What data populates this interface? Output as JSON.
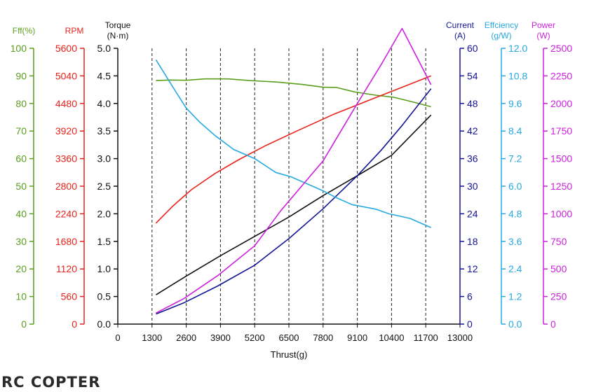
{
  "chart_data": {
    "type": "line",
    "xlabel": "Thrust(g)",
    "x_ticks": [
      0,
      1300,
      2600,
      3900,
      5200,
      6500,
      7800,
      9100,
      10400,
      11700,
      13000
    ],
    "x_range": [
      0,
      13000
    ],
    "grid": "vertical",
    "axes": [
      {
        "id": "eff",
        "title": "Fff(%)",
        "unit": "",
        "color": "#5a9e1e",
        "side": "left",
        "min": 0,
        "max": 100,
        "ticks": [
          0,
          10,
          20,
          30,
          40,
          50,
          60,
          70,
          80,
          90,
          100
        ],
        "tick_labels": [
          "0",
          "10",
          "20",
          "30",
          "40",
          "50",
          "60",
          "70",
          "80",
          "90",
          "100"
        ]
      },
      {
        "id": "rpm",
        "title": "RPM",
        "unit": "",
        "color": "#e8231c",
        "side": "left",
        "min": 0,
        "max": 5600,
        "ticks": [
          0,
          560,
          1120,
          1680,
          2240,
          2800,
          3360,
          3920,
          4480,
          5040,
          5600
        ],
        "tick_labels": [
          "0",
          "560",
          "1120",
          "1680",
          "2240",
          "2800",
          "3360",
          "3920",
          "4480",
          "5040",
          "5600"
        ]
      },
      {
        "id": "torque",
        "title": "Torque",
        "unit": "(N·m)",
        "color": "#111111",
        "side": "left",
        "min": 0,
        "max": 5,
        "ticks": [
          0,
          0.5,
          1,
          1.5,
          2,
          2.5,
          3,
          3.5,
          4,
          4.5,
          5
        ],
        "tick_labels": [
          "0.0",
          "0.5",
          "1.0",
          "1.5",
          "2.0",
          "2.5",
          "3.0",
          "3.5",
          "4.0",
          "4.5",
          "5.0"
        ]
      },
      {
        "id": "current",
        "title": "Current",
        "unit": "(A)",
        "color": "#141496",
        "side": "right",
        "min": 0,
        "max": 60,
        "ticks": [
          0,
          6,
          12,
          18,
          24,
          30,
          36,
          42,
          48,
          54,
          60
        ],
        "tick_labels": [
          "0",
          "6",
          "12",
          "18",
          "24",
          "30",
          "36",
          "42",
          "48",
          "54",
          "60"
        ]
      },
      {
        "id": "efficiency",
        "title": "Effciency",
        "unit": "(g/W)",
        "color": "#26a9e0",
        "side": "right",
        "min": 0,
        "max": 12,
        "ticks": [
          0,
          1.2,
          2.4,
          3.6,
          4.8,
          6,
          7.2,
          8.4,
          9.6,
          10.8,
          12
        ],
        "tick_labels": [
          "0.0",
          "1.2",
          "2.4",
          "3.6",
          "4.8",
          "6.0",
          "7.2",
          "8.4",
          "9.6",
          "10.8",
          "12.0"
        ]
      },
      {
        "id": "power",
        "title": "Power",
        "unit": "(W)",
        "color": "#cc22dd",
        "side": "right",
        "min": 0,
        "max": 2500,
        "ticks": [
          0,
          250,
          500,
          750,
          1000,
          1250,
          1500,
          1750,
          2000,
          2250,
          2500
        ],
        "tick_labels": [
          "0",
          "250",
          "500",
          "750",
          "1000",
          "1250",
          "1500",
          "1750",
          "2000",
          "2250",
          "2500"
        ]
      }
    ],
    "series": [
      {
        "name": "Fff(%)",
        "axis": "eff",
        "color": "#5a9e1e",
        "x": [
          1450,
          2000,
          2600,
          3300,
          4200,
          5000,
          6000,
          7000,
          7800,
          8300,
          9000,
          9800,
          10500,
          11100,
          11900
        ],
        "values": [
          88.3,
          88.5,
          88.4,
          88.9,
          88.9,
          88.3,
          87.8,
          86.9,
          85.9,
          85.8,
          84.2,
          83,
          82.2,
          80.8,
          78.8
        ]
      },
      {
        "name": "RPM",
        "axis": "rpm",
        "color": "#e8231c",
        "x": [
          1450,
          2100,
          2800,
          3700,
          4600,
          5600,
          6800,
          8200,
          9800,
          11000,
          11900
        ],
        "values": [
          2050,
          2400,
          2730,
          3060,
          3340,
          3620,
          3920,
          4260,
          4600,
          4850,
          5040
        ]
      },
      {
        "name": "Torque",
        "axis": "torque",
        "color": "#111111",
        "x": [
          1450,
          2600,
          3900,
          5200,
          6500,
          7800,
          9100,
          10400,
          11900
        ],
        "values": [
          0.53,
          0.87,
          1.24,
          1.59,
          1.94,
          2.33,
          2.69,
          3.06,
          3.79
        ]
      },
      {
        "name": "Current",
        "axis": "current",
        "color": "#141496",
        "x": [
          1450,
          2500,
          3800,
          5200,
          6500,
          7800,
          9100,
          10000,
          10800,
          11900
        ],
        "values": [
          2.2,
          4.6,
          8.3,
          12.8,
          18.6,
          25.1,
          32.3,
          37.8,
          43.2,
          51.2
        ]
      },
      {
        "name": "Effciency",
        "axis": "efficiency",
        "color": "#26a9e0",
        "x": [
          1450,
          2100,
          2600,
          3100,
          3700,
          4400,
          5200,
          6000,
          6600,
          7800,
          8300,
          8900,
          9800,
          10300,
          11100,
          11900
        ],
        "values": [
          11.5,
          10.3,
          9.4,
          8.8,
          8.2,
          7.6,
          7.2,
          6.6,
          6.4,
          5.8,
          5.5,
          5.2,
          5.0,
          4.8,
          4.6,
          4.2
        ]
      },
      {
        "name": "Power",
        "axis": "power",
        "color": "#cc22dd",
        "x": [
          1450,
          2500,
          3800,
          5200,
          6200,
          7800,
          9100,
          10000,
          10800,
          11900
        ],
        "values": [
          100,
          230,
          440,
          710,
          1030,
          1480,
          2000,
          2350,
          2680,
          2170
        ]
      }
    ]
  },
  "watermark": "RC COPTER"
}
